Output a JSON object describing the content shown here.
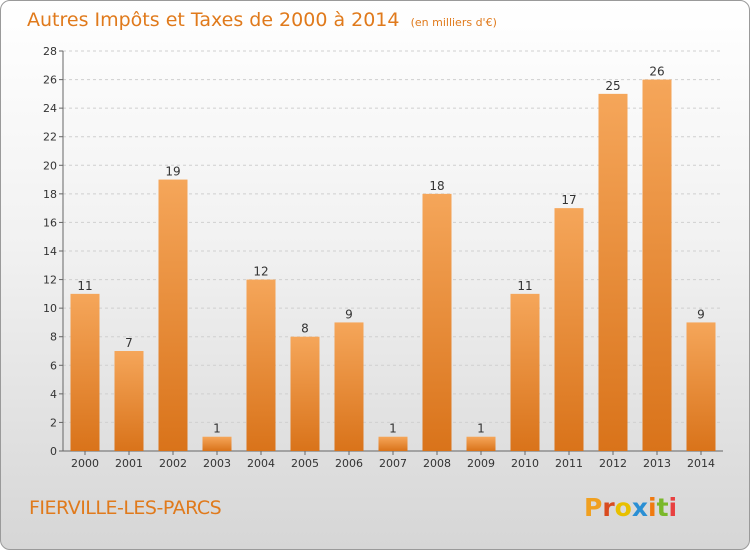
{
  "header": {
    "title": "Autres Impôts et Taxes de 2000 à 2014",
    "unit": "(en milliers d'€)"
  },
  "footer": {
    "place": "FIERVILLE-LES-PARCS",
    "logo_text": "Proxiti",
    "logo_colors": [
      "#f0a020",
      "#d94b1f",
      "#e8c000",
      "#2a8fd4",
      "#f07a10",
      "#7ab82a",
      "#e84040"
    ]
  },
  "colors": {
    "bar_top": "#f5a65a",
    "bar_bottom": "#d9731a",
    "accent": "#e07a1c"
  },
  "chart_data": {
    "type": "bar",
    "title": "Autres Impôts et Taxes de 2000 à 2014",
    "subtitle": "(en milliers d'€)",
    "categories": [
      "2000",
      "2001",
      "2002",
      "2003",
      "2004",
      "2005",
      "2006",
      "2007",
      "2008",
      "2009",
      "2010",
      "2011",
      "2012",
      "2013",
      "2014"
    ],
    "values": [
      11,
      7,
      19,
      1,
      12,
      8,
      9,
      1,
      18,
      1,
      11,
      17,
      25,
      26,
      9
    ],
    "ylim": [
      0,
      28
    ],
    "yticks": [
      0,
      2,
      4,
      6,
      8,
      10,
      12,
      14,
      16,
      18,
      20,
      22,
      24,
      26,
      28
    ],
    "grid": true,
    "legend": "none"
  }
}
